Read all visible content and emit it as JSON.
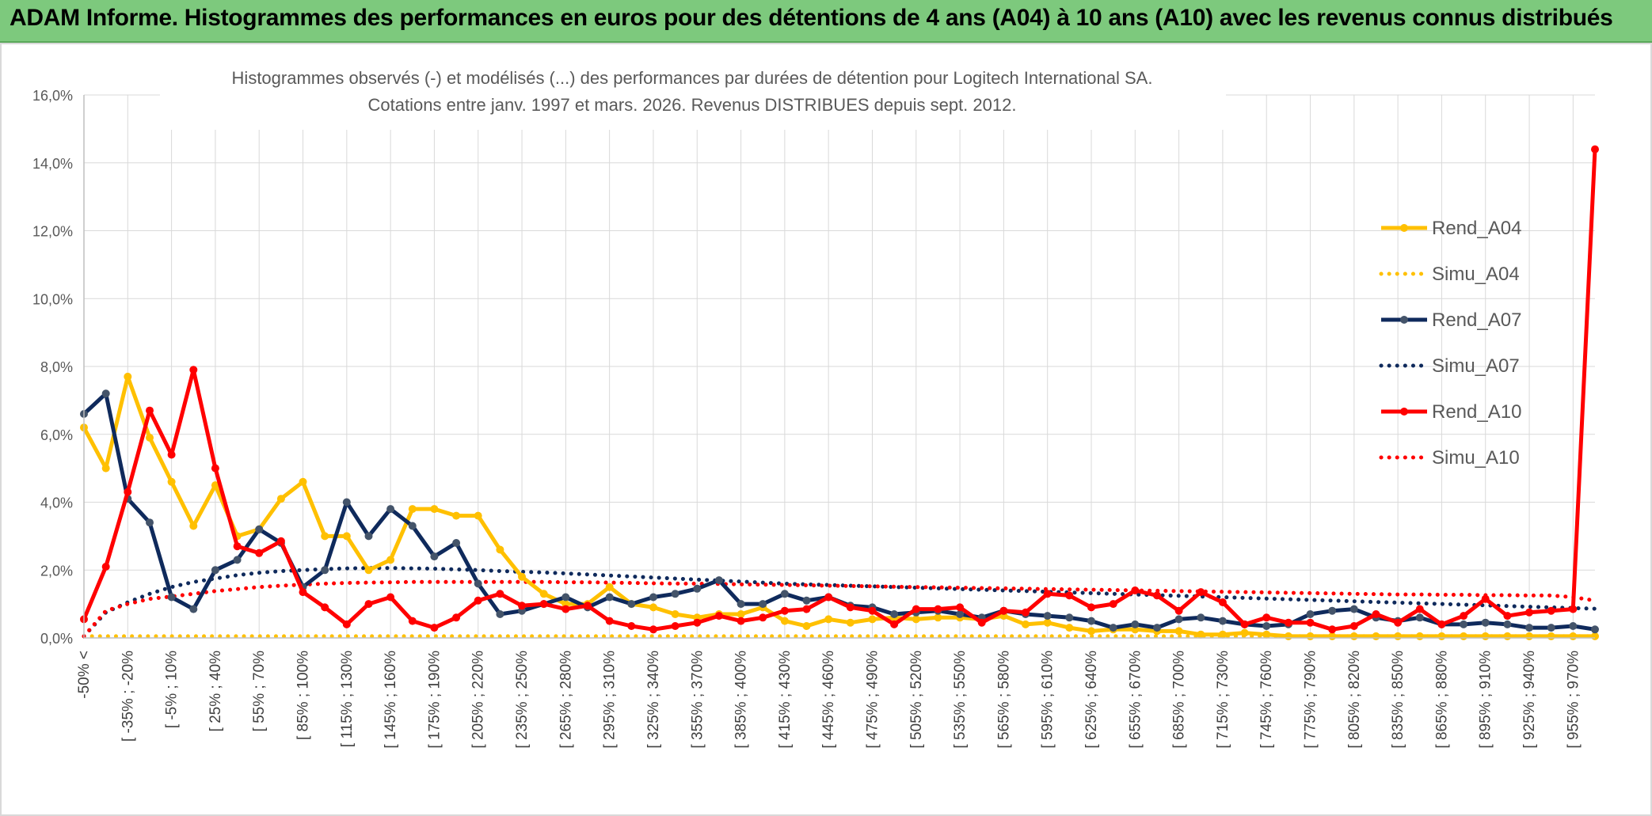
{
  "header": {
    "title": "ADAM Informe. Histogrammes des performances en euros pour des détentions de 4 ans (A04) à 10 ans (A10) avec les revenus connus distribués"
  },
  "colors": {
    "banner": "#7dc97d",
    "A04": "#ffc000",
    "A07": "#0f2a5c",
    "A10": "#ff0000",
    "grid": "#d9d9d9"
  },
  "chart_data": {
    "type": "line",
    "title": "Histogrammes observés (-) et modélisés (...) des performances par durées de détention pour Logitech International SA.",
    "subtitle": "Cotations entre janv. 1997 et mars. 2026. Revenus DISTRIBUES depuis sept. 2012.",
    "ylim": [
      0,
      16
    ],
    "ytick_step": 2,
    "y_tick_labels": [
      "0,0%",
      "2,0%",
      "4,0%",
      "6,0%",
      "8,0%",
      "10,0%",
      "12,0%",
      "14,0%",
      "16,0%"
    ],
    "x_tick_labels": [
      "-50% <",
      "[ -35% ; -20%",
      "[ -5% ; 10%",
      "[ 25% ; 40%",
      "[ 55% ; 70%",
      "[ 85% ; 100%",
      "[ 115% ; 130%",
      "[ 145% ; 160%",
      "[ 175% ; 190%",
      "[ 205% ; 220%",
      "[ 235% ; 250%",
      "[ 265% ; 280%",
      "[ 295% ; 310%",
      "[ 325% ; 340%",
      "[ 355% ; 370%",
      "[ 385% ; 400%",
      "[ 415% ; 430%",
      "[ 445% ; 460%",
      "[ 475% ; 490%",
      "[ 505% ; 520%",
      "[ 535% ; 550%",
      "[ 565% ; 580%",
      "[ 595% ; 610%",
      "[ 625% ; 640%",
      "[ 655% ; 670%",
      "[ 685% ; 700%",
      "[ 715% ; 730%",
      "[ 745% ; 760%",
      "[ 775% ; 790%",
      "[ 805% ; 820%",
      "[ 835% ; 850%",
      "[ 865% ; 880%",
      "[ 895% ; 910%",
      "[ 925% ; 940%",
      "[ 955% ; 970%"
    ],
    "n_points": 70,
    "series": [
      {
        "name": "Rend_A04",
        "style": "solid",
        "color": "#ffc000",
        "values": [
          6.2,
          5.0,
          7.7,
          5.9,
          4.6,
          3.3,
          4.5,
          3.0,
          3.2,
          4.1,
          4.6,
          3.0,
          3.0,
          2.0,
          2.3,
          3.8,
          3.8,
          3.6,
          3.6,
          2.6,
          1.8,
          1.3,
          1.0,
          1.0,
          1.5,
          1.0,
          0.9,
          0.7,
          0.6,
          0.7,
          0.7,
          0.9,
          0.5,
          0.35,
          0.55,
          0.45,
          0.55,
          0.6,
          0.55,
          0.6,
          0.6,
          0.55,
          0.65,
          0.4,
          0.45,
          0.3,
          0.2,
          0.25,
          0.25,
          0.2,
          0.2,
          0.1,
          0.1,
          0.15,
          0.1,
          0.05,
          0.05,
          0.05,
          0.05,
          0.05,
          0.05,
          0.05,
          0.05,
          0.05,
          0.05,
          0.05,
          0.05,
          0.05,
          0.05,
          0.05
        ]
      },
      {
        "name": "Simu_A04",
        "style": "dotted",
        "color": "#ffc000",
        "values": [
          0.05,
          0.05,
          0.05,
          0.05,
          0.05,
          0.05,
          0.05,
          0.05,
          0.05,
          0.05,
          0.05,
          0.05,
          0.05,
          0.05,
          0.05,
          0.05,
          0.05,
          0.05,
          0.05,
          0.05,
          0.05,
          0.05,
          0.05,
          0.05,
          0.05,
          0.05,
          0.05,
          0.05,
          0.05,
          0.05,
          0.05,
          0.05,
          0.05,
          0.05,
          0.05,
          0.05,
          0.05,
          0.05,
          0.05,
          0.05,
          0.05,
          0.05,
          0.05,
          0.05,
          0.05,
          0.05,
          0.05,
          0.05,
          0.05,
          0.05,
          0.05,
          0.05,
          0.05,
          0.05,
          0.05,
          0.05,
          0.05,
          0.05,
          0.05,
          0.05,
          0.05,
          0.05,
          0.05,
          0.05,
          0.05,
          0.05,
          0.05,
          0.05,
          0.05,
          0.05
        ]
      },
      {
        "name": "Rend_A07",
        "style": "solid",
        "color": "#0f2a5c",
        "values": [
          6.6,
          7.2,
          4.1,
          3.4,
          1.2,
          0.85,
          2.0,
          2.3,
          3.2,
          2.8,
          1.5,
          2.0,
          4.0,
          3.0,
          3.8,
          3.3,
          2.4,
          2.8,
          1.6,
          0.7,
          0.8,
          1.0,
          1.2,
          0.9,
          1.2,
          1.0,
          1.2,
          1.3,
          1.45,
          1.7,
          1.0,
          1.0,
          1.3,
          1.1,
          1.2,
          0.95,
          0.9,
          0.7,
          0.75,
          0.8,
          0.7,
          0.6,
          0.8,
          0.7,
          0.65,
          0.6,
          0.5,
          0.3,
          0.4,
          0.3,
          0.55,
          0.6,
          0.5,
          0.4,
          0.35,
          0.4,
          0.7,
          0.8,
          0.85,
          0.6,
          0.5,
          0.6,
          0.4,
          0.4,
          0.45,
          0.4,
          0.3,
          0.3,
          0.35,
          0.25
        ]
      },
      {
        "name": "Simu_A07",
        "style": "dotted",
        "color": "#0f2a5c",
        "values": [
          0.05,
          0.75,
          1.05,
          1.3,
          1.5,
          1.65,
          1.75,
          1.85,
          1.92,
          1.97,
          2.0,
          2.03,
          2.05,
          2.06,
          2.06,
          2.05,
          2.04,
          2.02,
          2.0,
          1.97,
          1.95,
          1.93,
          1.9,
          1.87,
          1.84,
          1.81,
          1.78,
          1.75,
          1.72,
          1.69,
          1.66,
          1.63,
          1.6,
          1.58,
          1.56,
          1.54,
          1.52,
          1.5,
          1.48,
          1.46,
          1.44,
          1.42,
          1.4,
          1.38,
          1.36,
          1.34,
          1.32,
          1.3,
          1.28,
          1.26,
          1.24,
          1.22,
          1.2,
          1.18,
          1.16,
          1.14,
          1.12,
          1.1,
          1.08,
          1.06,
          1.04,
          1.02,
          1.0,
          0.98,
          0.96,
          0.94,
          0.92,
          0.9,
          0.88,
          0.86
        ]
      },
      {
        "name": "Rend_A10",
        "style": "solid",
        "color": "#ff0000",
        "values": [
          0.55,
          2.1,
          4.3,
          6.7,
          5.4,
          7.9,
          5.0,
          2.7,
          2.5,
          2.85,
          1.35,
          0.9,
          0.4,
          1.0,
          1.2,
          0.5,
          0.3,
          0.6,
          1.1,
          1.3,
          0.95,
          1.0,
          0.85,
          0.95,
          0.5,
          0.35,
          0.25,
          0.35,
          0.45,
          0.65,
          0.5,
          0.6,
          0.8,
          0.85,
          1.2,
          0.9,
          0.8,
          0.4,
          0.85,
          0.85,
          0.9,
          0.45,
          0.8,
          0.75,
          1.3,
          1.25,
          0.9,
          1.0,
          1.4,
          1.25,
          0.8,
          1.35,
          1.05,
          0.4,
          0.6,
          0.45,
          0.45,
          0.25,
          0.35,
          0.7,
          0.45,
          0.85,
          0.4,
          0.65,
          1.15,
          0.65,
          0.75,
          0.8,
          0.85,
          14.4
        ]
      },
      {
        "name": "Simu_A10",
        "style": "dotted",
        "color": "#ff0000",
        "values": [
          0.05,
          0.8,
          1.0,
          1.15,
          1.22,
          1.3,
          1.38,
          1.44,
          1.5,
          1.54,
          1.57,
          1.6,
          1.62,
          1.63,
          1.64,
          1.65,
          1.65,
          1.65,
          1.65,
          1.65,
          1.65,
          1.65,
          1.64,
          1.64,
          1.63,
          1.62,
          1.61,
          1.6,
          1.6,
          1.59,
          1.58,
          1.57,
          1.56,
          1.55,
          1.54,
          1.53,
          1.52,
          1.51,
          1.5,
          1.49,
          1.48,
          1.47,
          1.46,
          1.45,
          1.44,
          1.43,
          1.42,
          1.41,
          1.4,
          1.39,
          1.38,
          1.37,
          1.36,
          1.35,
          1.34,
          1.33,
          1.32,
          1.31,
          1.3,
          1.29,
          1.28,
          1.28,
          1.27,
          1.27,
          1.26,
          1.26,
          1.25,
          1.25,
          1.2,
          1.1
        ]
      }
    ],
    "legend": [
      "Rend_A04",
      "Simu_A04",
      "Rend_A07",
      "Simu_A07",
      "Rend_A10",
      "Simu_A10"
    ],
    "legend_position": "top-right"
  }
}
